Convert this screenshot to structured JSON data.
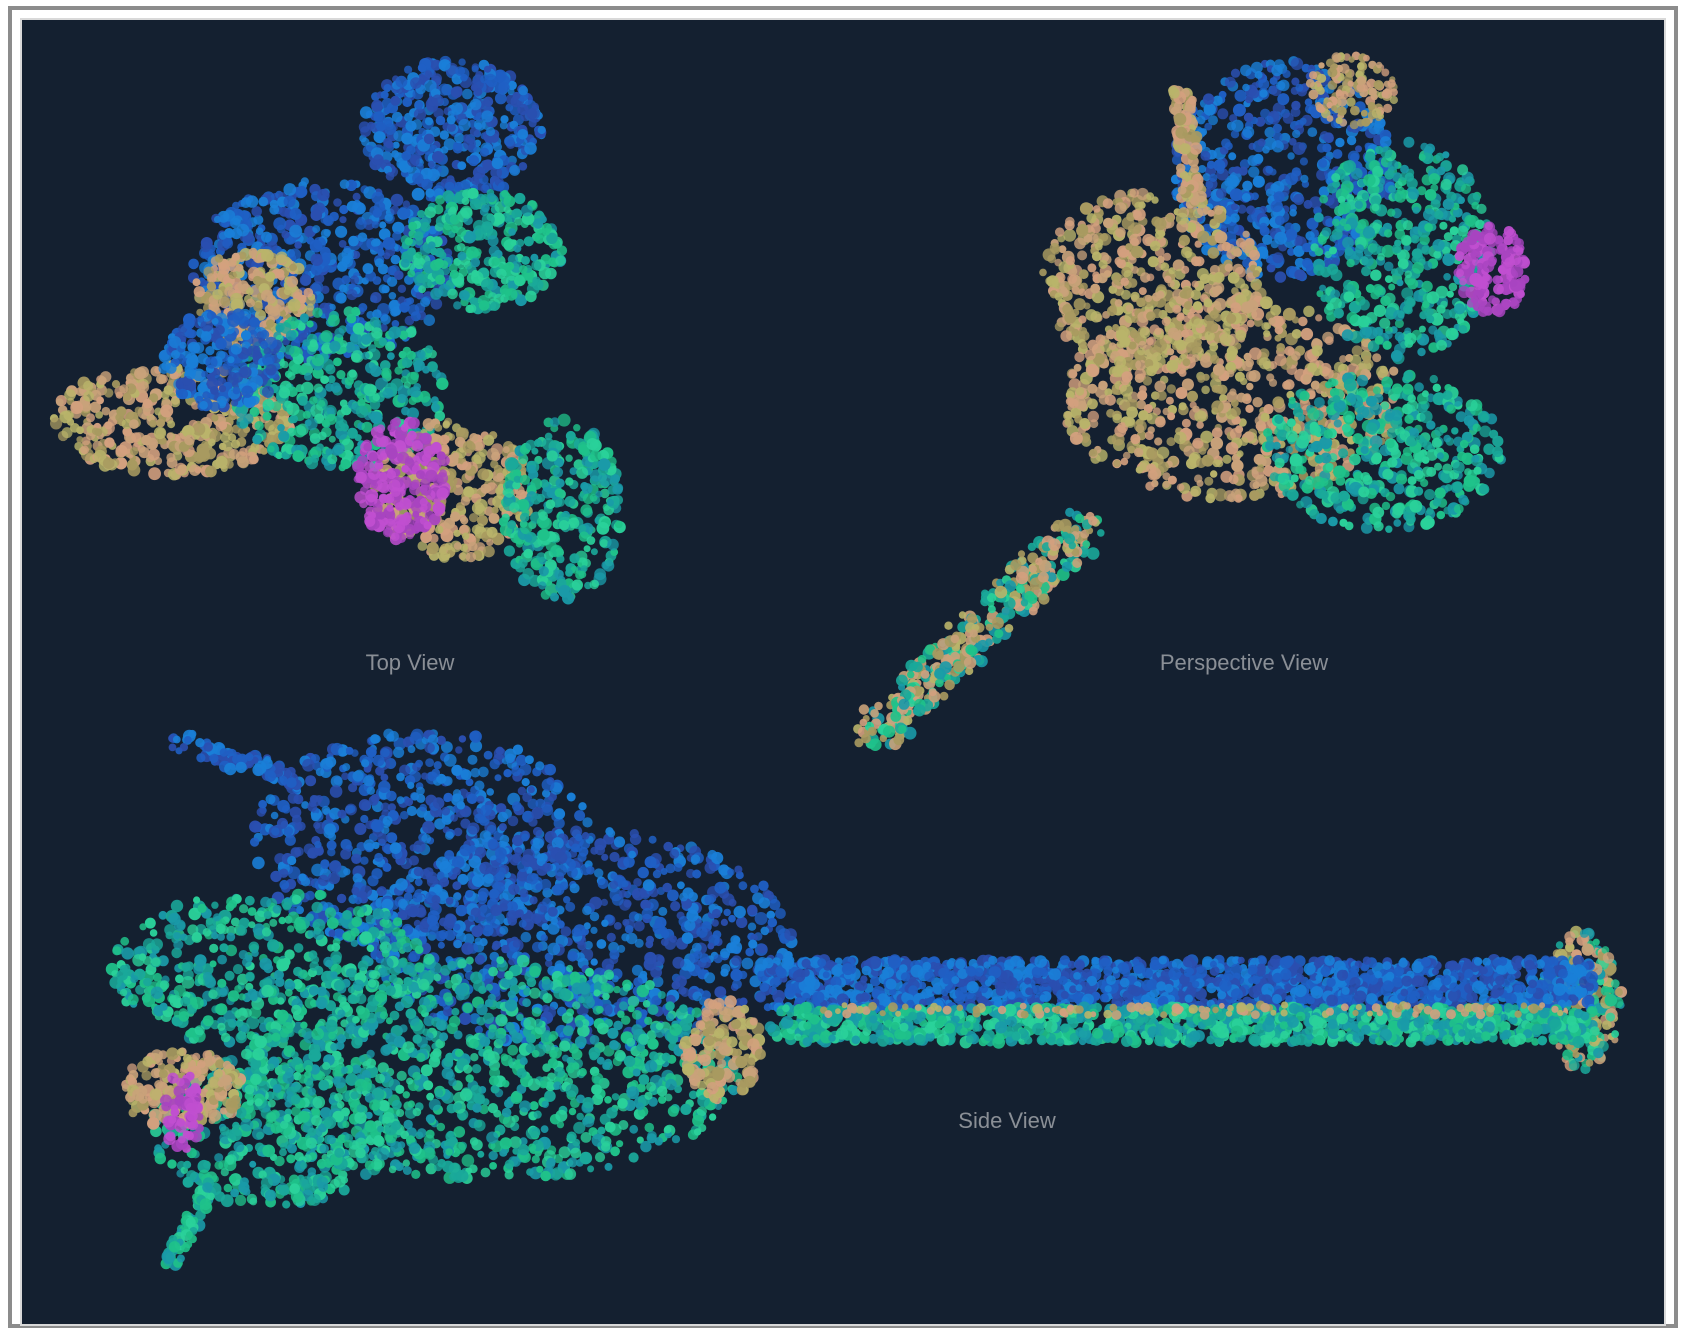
{
  "captions": {
    "top_view": "Top View",
    "perspective_view": "Perspective View",
    "side_view": "Side View"
  },
  "colors": {
    "background": "#142030",
    "frame": "#8c8c8c",
    "caption": "#8a8f96",
    "palette": [
      "#1f5fc4",
      "#1a7fd8",
      "#1aa89a",
      "#1fc28a",
      "#2ad19a",
      "#b9b46a",
      "#c9a27a",
      "#d3a07e",
      "#c04fd0"
    ]
  }
}
